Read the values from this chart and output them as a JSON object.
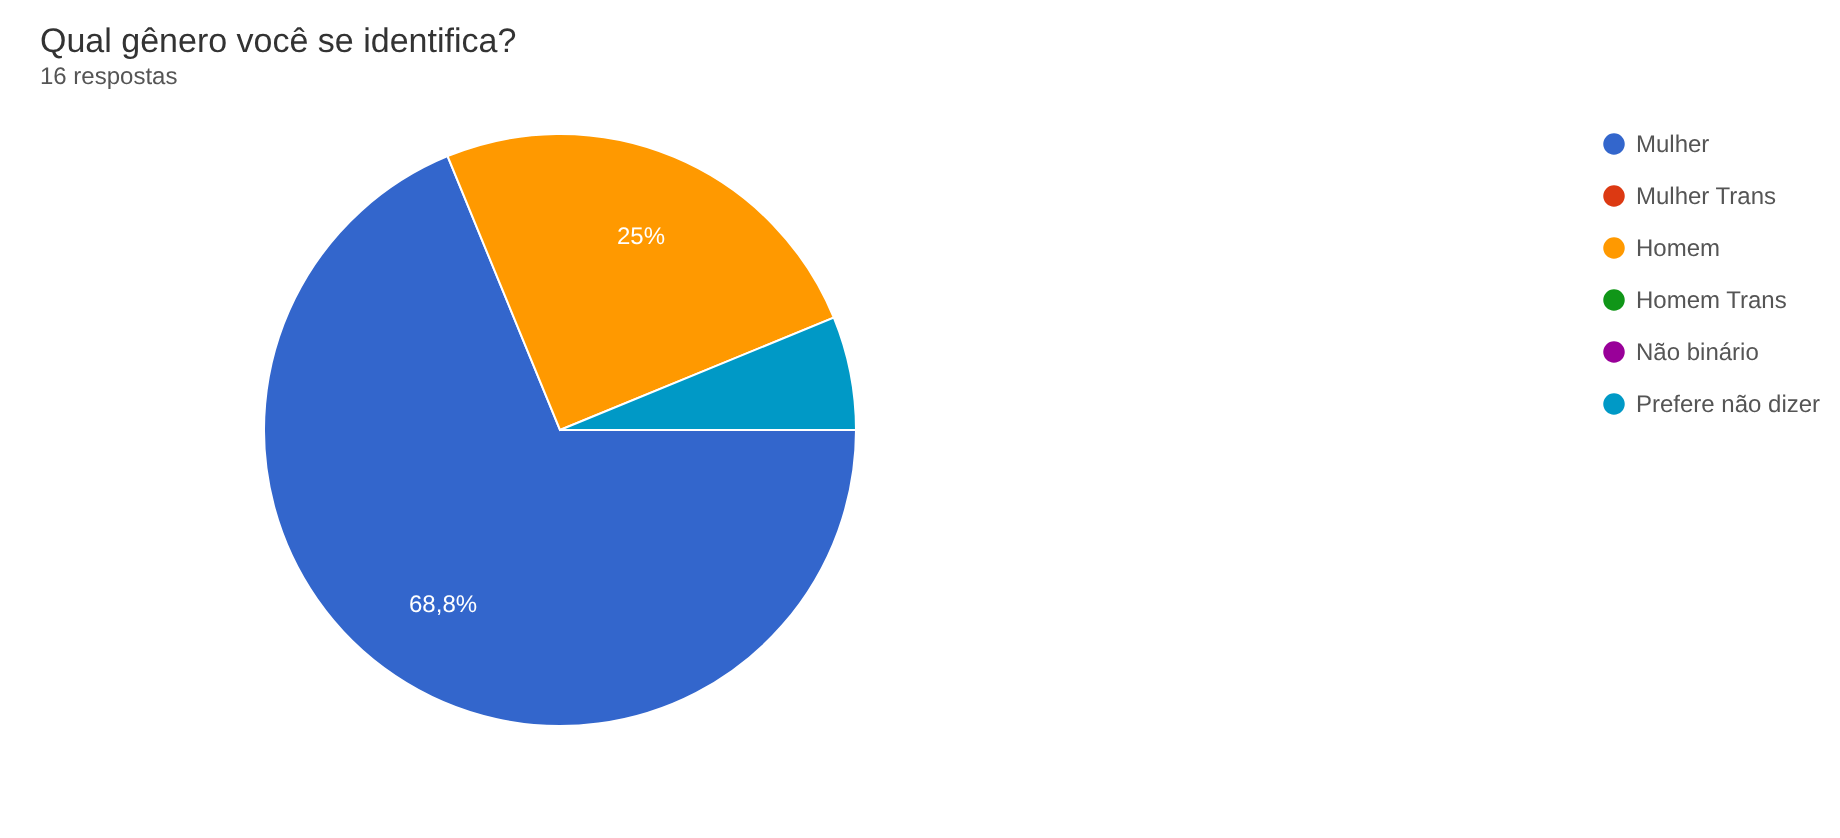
{
  "chart_data": {
    "type": "pie",
    "title": "Qual gênero você se identifica?",
    "subtitle": "16 respostas",
    "categories": [
      "Mulher",
      "Mulher Trans",
      "Homem",
      "Homem Trans",
      "Não binário",
      "Prefere não dizer"
    ],
    "values": [
      68.8,
      0,
      25,
      0,
      0,
      6.2
    ],
    "colors": [
      "#3366cc",
      "#dc3912",
      "#ff9900",
      "#109618",
      "#990099",
      "#0099c6"
    ],
    "value_labels": [
      "68,8%",
      null,
      "25%",
      null,
      null,
      null
    ],
    "legend": "right"
  }
}
